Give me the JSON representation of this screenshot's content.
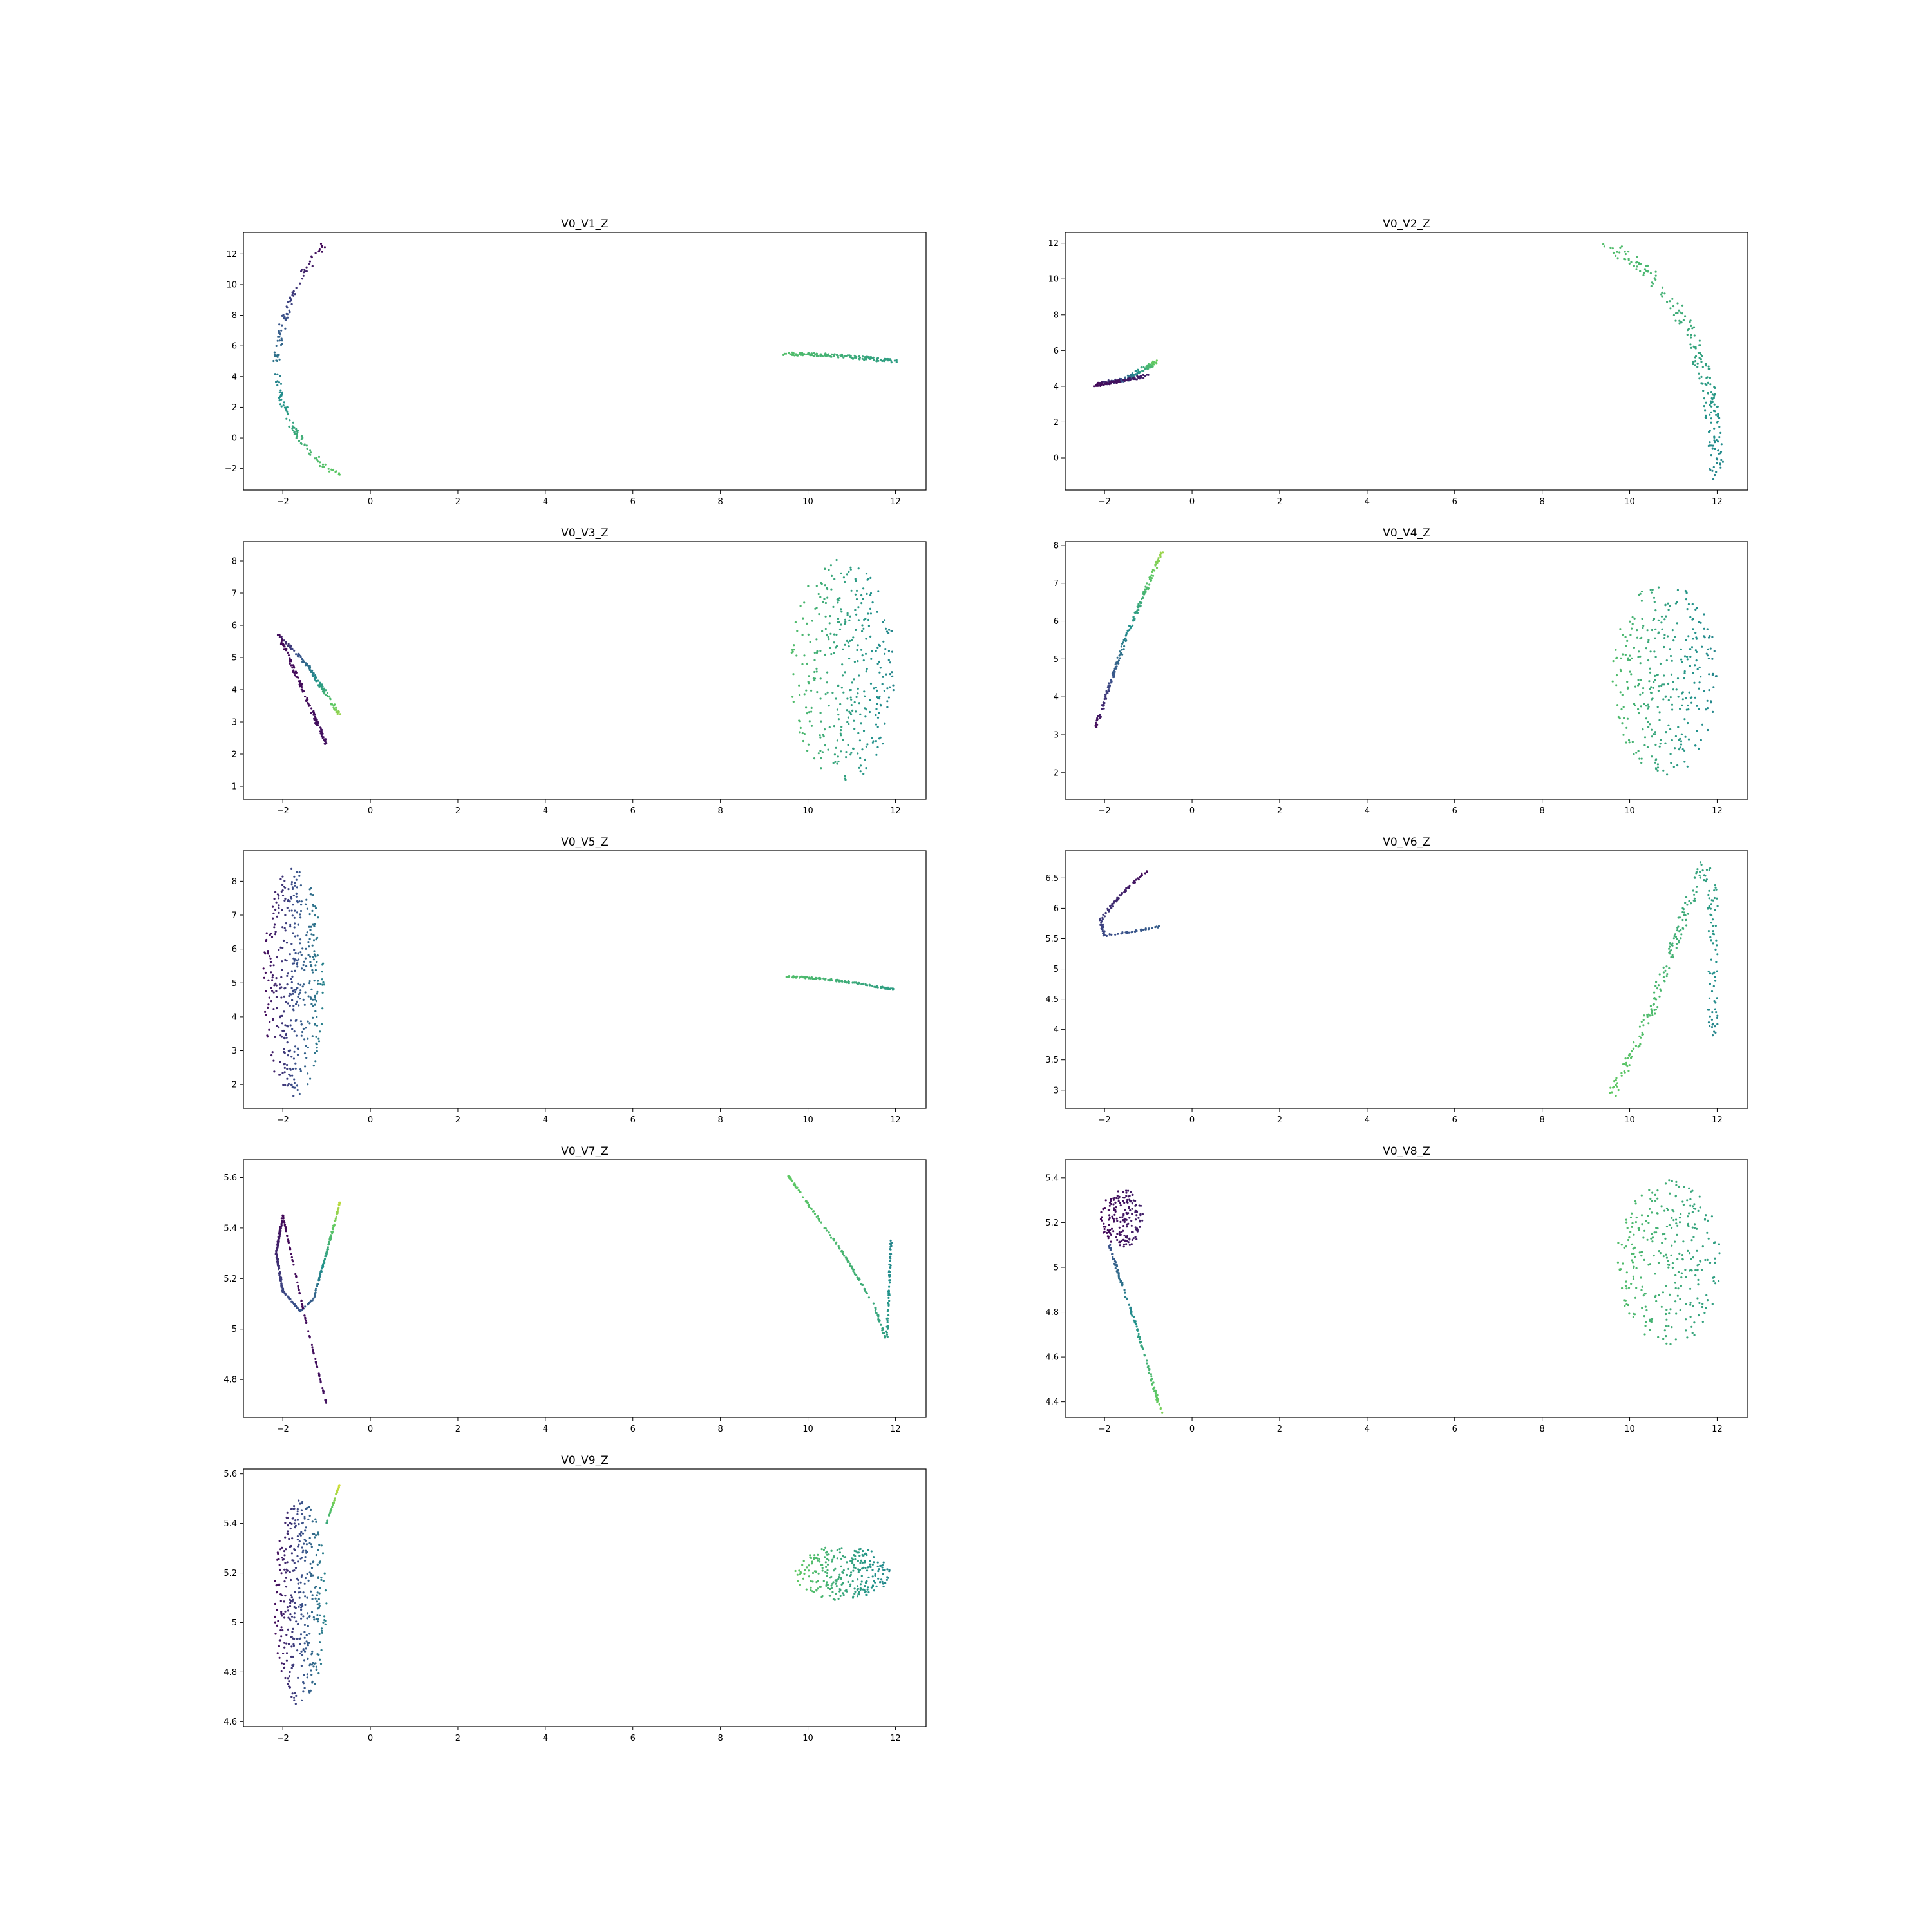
{
  "figure": {
    "background": "#ffffff"
  },
  "colormap": {
    "name": "viridis",
    "stops": [
      "#440154",
      "#3b528b",
      "#21918c",
      "#5ec962",
      "#fde725"
    ]
  },
  "chart_data": [
    {
      "type": "scatter",
      "title": "V0_V1_Z",
      "xlim": [
        -2.9,
        12.7
      ],
      "ylim": [
        -3.4,
        13.4
      ],
      "xticks": [
        -2,
        0,
        2,
        4,
        6,
        8,
        10,
        12
      ],
      "yticks": [
        -2,
        0,
        2,
        4,
        6,
        8,
        10,
        12
      ],
      "series": [
        {
          "kind": "polyline",
          "spread": 0.12,
          "density": 60,
          "c": [
            0.02,
            0.75
          ],
          "points": [
            [
              -1.05,
              12.6
            ],
            [
              -1.6,
              10.5
            ],
            [
              -2.0,
              7.5
            ],
            [
              -2.15,
              5
            ],
            [
              -2.05,
              2.5
            ],
            [
              -1.7,
              0.3
            ],
            [
              -1.2,
              -1.5
            ],
            [
              -0.7,
              -2.5
            ]
          ]
        },
        {
          "kind": "polyline",
          "spread": 0.1,
          "density": 50,
          "c": [
            0.7,
            0.55
          ],
          "points": [
            [
              9.5,
              5.5
            ],
            [
              10.5,
              5.4
            ],
            [
              11.3,
              5.2
            ],
            [
              12.0,
              5.0
            ]
          ]
        }
      ]
    },
    {
      "type": "scatter",
      "title": "V0_V2_Z",
      "xlim": [
        -2.9,
        12.7
      ],
      "ylim": [
        -1.8,
        12.6
      ],
      "xticks": [
        -2,
        0,
        2,
        4,
        6,
        8,
        10,
        12
      ],
      "yticks": [
        0,
        2,
        4,
        6,
        8,
        10,
        12
      ],
      "series": [
        {
          "kind": "polyline",
          "spread": 0.1,
          "density": 40,
          "c": [
            0.02,
            0.8
          ],
          "points": [
            [
              -2.2,
              4.1
            ],
            [
              -1.5,
              4.4
            ],
            [
              -0.8,
              5.4
            ]
          ]
        },
        {
          "kind": "polyline",
          "spread": 0.08,
          "density": 25,
          "c": [
            0.02,
            0.1
          ],
          "points": [
            [
              -2.2,
              4.05
            ],
            [
              -1.0,
              4.6
            ]
          ]
        },
        {
          "kind": "polyline",
          "spread": 0.25,
          "density": 70,
          "c": [
            0.7,
            0.45
          ],
          "points": [
            [
              9.5,
              12
            ],
            [
              10.6,
              10
            ],
            [
              11.3,
              7.5
            ],
            [
              11.8,
              4
            ],
            [
              12.0,
              0
            ],
            [
              11.9,
              -1
            ]
          ]
        }
      ]
    },
    {
      "type": "scatter",
      "title": "V0_V3_Z",
      "xlim": [
        -2.9,
        12.7
      ],
      "ylim": [
        0.6,
        8.6
      ],
      "xticks": [
        -2,
        0,
        2,
        4,
        6,
        8,
        10,
        12
      ],
      "yticks": [
        1,
        2,
        3,
        4,
        5,
        6,
        7,
        8
      ],
      "series": [
        {
          "kind": "polyline",
          "spread": 0.06,
          "density": 40,
          "c": [
            0.02,
            0.05
          ],
          "points": [
            [
              -2.1,
              5.7
            ],
            [
              -1.0,
              2.3
            ]
          ]
        },
        {
          "kind": "polyline",
          "spread": 0.06,
          "density": 40,
          "c": [
            0.05,
            0.85
          ],
          "points": [
            [
              -2.1,
              5.7
            ],
            [
              -1.4,
              4.7
            ],
            [
              -0.7,
              3.2
            ]
          ]
        },
        {
          "kind": "ellipse",
          "density": 120,
          "c": [
            0.7,
            0.45
          ],
          "cx": 10.8,
          "cy": 4.6,
          "rx": 1.2,
          "ry": 3.5
        }
      ]
    },
    {
      "type": "scatter",
      "title": "V0_V4_Z",
      "xlim": [
        -2.9,
        12.7
      ],
      "ylim": [
        1.3,
        8.1
      ],
      "xticks": [
        -2,
        0,
        2,
        4,
        6,
        8,
        10,
        12
      ],
      "yticks": [
        2,
        3,
        4,
        5,
        6,
        7,
        8
      ],
      "series": [
        {
          "kind": "polyline",
          "spread": 0.06,
          "density": 60,
          "c": [
            0.02,
            0.85
          ],
          "points": [
            [
              -2.2,
              3.2
            ],
            [
              -1.5,
              5.6
            ],
            [
              -0.7,
              7.8
            ]
          ]
        },
        {
          "kind": "ellipse",
          "density": 110,
          "c": [
            0.7,
            0.45
          ],
          "cx": 10.8,
          "cy": 4.5,
          "rx": 1.2,
          "ry": 2.6
        }
      ]
    },
    {
      "type": "scatter",
      "title": "V0_V5_Z",
      "xlim": [
        -2.9,
        12.7
      ],
      "ylim": [
        1.3,
        8.9
      ],
      "xticks": [
        -2,
        0,
        2,
        4,
        6,
        8,
        10,
        12
      ],
      "yticks": [
        2,
        3,
        4,
        5,
        6,
        7,
        8
      ],
      "series": [
        {
          "kind": "ellipse",
          "density": 140,
          "c": [
            0.02,
            0.45
          ],
          "cx": -1.75,
          "cy": 5.0,
          "rx": 0.7,
          "ry": 3.4
        },
        {
          "kind": "polyline",
          "spread": 0.05,
          "density": 40,
          "c": [
            0.7,
            0.55
          ],
          "points": [
            [
              9.5,
              5.2
            ],
            [
              10.5,
              5.1
            ],
            [
              11.3,
              4.95
            ],
            [
              12.0,
              4.8
            ]
          ]
        }
      ]
    },
    {
      "type": "scatter",
      "title": "V0_V6_Z",
      "xlim": [
        -2.9,
        12.7
      ],
      "ylim": [
        2.7,
        6.95
      ],
      "xticks": [
        -2,
        0,
        2,
        4,
        6,
        8,
        10,
        12
      ],
      "yticks": [
        3.0,
        3.5,
        4.0,
        4.5,
        5.0,
        5.5,
        6.0,
        6.5
      ],
      "series": [
        {
          "kind": "polyline",
          "spread": 0.05,
          "density": 45,
          "c": [
            0.02,
            0.3
          ],
          "points": [
            [
              -1.0,
              6.65
            ],
            [
              -1.6,
              6.25
            ],
            [
              -2.1,
              5.8
            ],
            [
              -2.0,
              5.55
            ],
            [
              -1.5,
              5.6
            ],
            [
              -0.7,
              5.7
            ]
          ]
        },
        {
          "kind": "polyline",
          "spread": 0.18,
          "density": 80,
          "c": [
            0.75,
            0.45
          ],
          "points": [
            [
              9.6,
              2.9
            ],
            [
              10.5,
              4.3
            ],
            [
              11.3,
              6.0
            ],
            [
              11.7,
              6.75
            ],
            [
              11.9,
              6.3
            ],
            [
              11.9,
              3.9
            ]
          ]
        }
      ]
    },
    {
      "type": "scatter",
      "title": "V0_V7_Z",
      "xlim": [
        -2.9,
        12.7
      ],
      "ylim": [
        4.65,
        5.67
      ],
      "xticks": [
        -2,
        0,
        2,
        4,
        6,
        8,
        10,
        12
      ],
      "yticks": [
        4.8,
        5.0,
        5.2,
        5.4,
        5.6
      ],
      "series": [
        {
          "kind": "polyline",
          "spread": 0.025,
          "density": 60,
          "c": [
            0.02,
            0.3
          ],
          "points": [
            [
              -2.0,
              5.45
            ],
            [
              -2.15,
              5.3
            ],
            [
              -2.0,
              5.15
            ],
            [
              -1.6,
              5.07
            ],
            [
              -1.3,
              5.12
            ]
          ]
        },
        {
          "kind": "polyline",
          "spread": 0.02,
          "density": 40,
          "c": [
            0.3,
            0.9
          ],
          "points": [
            [
              -1.3,
              5.12
            ],
            [
              -1.0,
              5.3
            ],
            [
              -0.7,
              5.5
            ]
          ]
        },
        {
          "kind": "polyline",
          "spread": 0.008,
          "density": 35,
          "c": [
            0.02,
            0.05
          ],
          "points": [
            [
              -2.0,
              5.45
            ],
            [
              -1.5,
              5.05
            ],
            [
              -1.0,
              4.7
            ]
          ]
        },
        {
          "kind": "polyline",
          "spread": 0.03,
          "density": 70,
          "c": [
            0.75,
            0.45
          ],
          "points": [
            [
              9.5,
              5.62
            ],
            [
              10.8,
              5.3
            ],
            [
              11.5,
              5.1
            ],
            [
              11.8,
              4.95
            ],
            [
              11.9,
              5.35
            ]
          ]
        }
      ]
    },
    {
      "type": "scatter",
      "title": "V0_V8_Z",
      "xlim": [
        -2.9,
        12.7
      ],
      "ylim": [
        4.33,
        5.48
      ],
      "xticks": [
        -2,
        0,
        2,
        4,
        6,
        8,
        10,
        12
      ],
      "yticks": [
        4.4,
        4.6,
        4.8,
        5.0,
        5.2,
        5.4
      ],
      "series": [
        {
          "kind": "ellipse",
          "density": 60,
          "c": [
            0.02,
            0.1
          ],
          "cx": -1.6,
          "cy": 5.22,
          "rx": 0.5,
          "ry": 0.13
        },
        {
          "kind": "polyline",
          "spread": 0.04,
          "density": 45,
          "c": [
            0.25,
            0.8
          ],
          "points": [
            [
              -1.9,
              5.1
            ],
            [
              -1.3,
              4.75
            ],
            [
              -0.7,
              4.35
            ]
          ]
        },
        {
          "kind": "ellipse",
          "density": 100,
          "c": [
            0.7,
            0.55
          ],
          "cx": 10.9,
          "cy": 5.02,
          "rx": 1.2,
          "ry": 0.37
        }
      ]
    },
    {
      "type": "scatter",
      "title": "V0_V9_Z",
      "xlim": [
        -2.9,
        12.7
      ],
      "ylim": [
        4.58,
        5.62
      ],
      "xticks": [
        -2,
        0,
        2,
        4,
        6,
        8,
        10,
        12
      ],
      "yticks": [
        4.6,
        4.8,
        5.0,
        5.2,
        5.4,
        5.6
      ],
      "series": [
        {
          "kind": "ellipse",
          "density": 130,
          "c": [
            0.02,
            0.45
          ],
          "cx": -1.6,
          "cy": 5.08,
          "rx": 0.6,
          "ry": 0.42
        },
        {
          "kind": "polyline",
          "spread": 0.015,
          "density": 15,
          "c": [
            0.6,
            0.95
          ],
          "points": [
            [
              -1.0,
              5.4
            ],
            [
              -0.7,
              5.56
            ]
          ]
        },
        {
          "kind": "ellipse",
          "density": 90,
          "c": [
            0.75,
            0.45
          ],
          "cx": 10.8,
          "cy": 5.2,
          "rx": 1.1,
          "ry": 0.11
        }
      ]
    }
  ]
}
